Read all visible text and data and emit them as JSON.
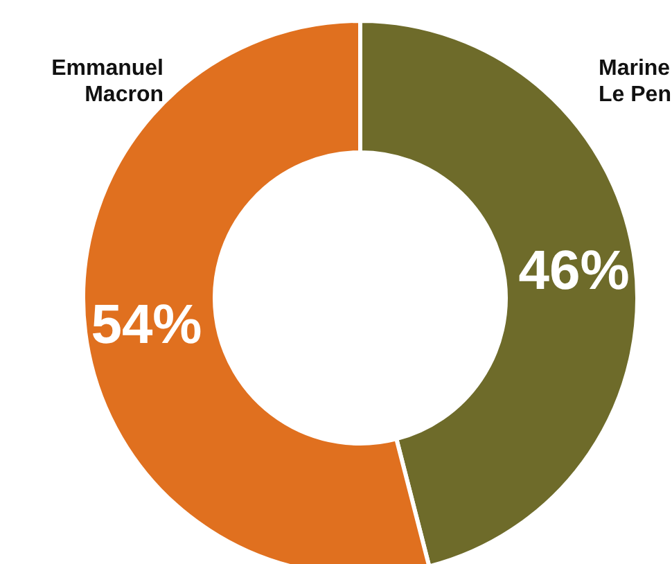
{
  "chart_data": {
    "type": "donut",
    "categories": [
      "Marine Le Pen",
      "Emmanuel Macron"
    ],
    "values": [
      46,
      54
    ],
    "colors": [
      "#6e6b2a",
      "#e0701f"
    ],
    "value_labels": [
      "46%",
      "54%"
    ],
    "legend": false
  }
}
